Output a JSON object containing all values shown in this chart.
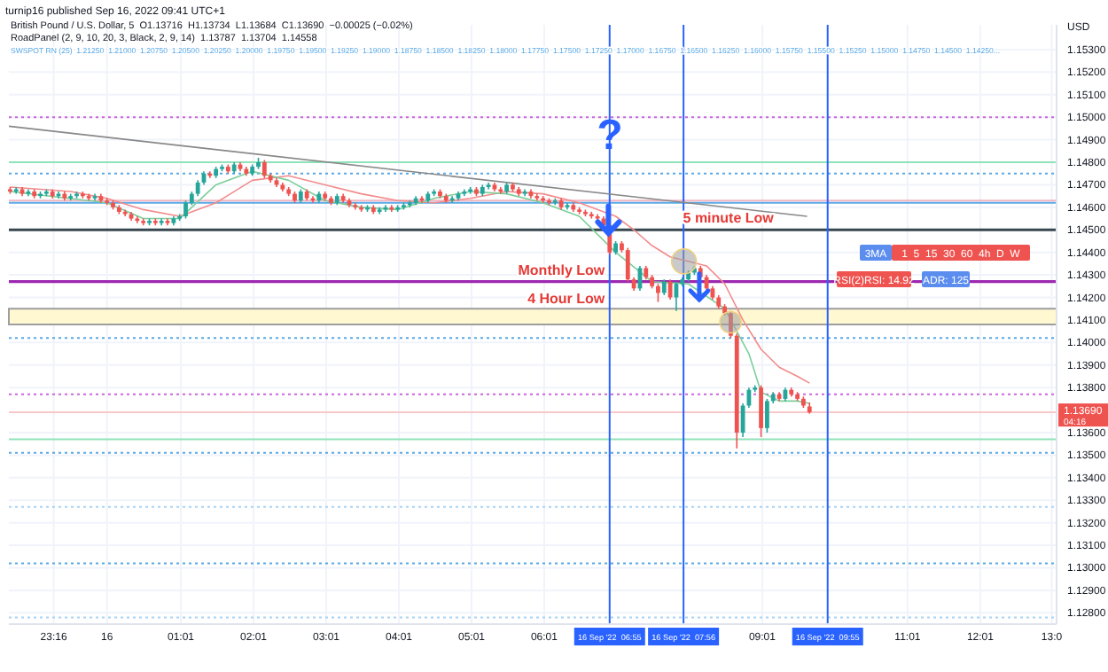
{
  "chart_data": {
    "type": "candlestick",
    "ylabel": "USD",
    "annotations": [
      "turnip16 published Sep 16, 2022 09:41 UTC+1",
      "British Pound / U.S. Dollar, 5  O1.13716  H1.13734  L1.13684  C1.13690  −0.00025 (−0.02%)",
      "RoadPanel (2, 9, 10, 20, 3, Black, 2, 9, 14)  1.13787  1.13704  1.14558",
      "SWSPOT RN (25)  1.21250  1.21000  1.20750  1.20500  1.20250  1.20000  1.19750  1.19500  1.19250  1.19000  1.18750  1.18500  1.18250  1.18000  1.17750  1.17500  1.17250  1.17000  1.16750  1.16500  1.16250  1.16000  1.15750  1.15500  1.15250  1.15000  1.14750  1.14500  1.14250...",
      "?",
      "3MA",
      "1  5  15  30  60  4h  D  W",
      "RSI(2)RSI: 14.92",
      "ADR: 125",
      "1.13690",
      "04:16"
    ],
    "x": [
      "2022-09-15T22:40",
      "2022-09-15T22:45",
      "2022-09-15T22:50",
      "2022-09-15T22:55",
      "2022-09-15T23:00",
      "2022-09-15T23:05",
      "2022-09-15T23:10",
      "2022-09-15T23:15",
      "2022-09-15T23:20",
      "2022-09-15T23:25",
      "2022-09-15T23:30",
      "2022-09-15T23:35",
      "2022-09-15T23:40",
      "2022-09-15T23:45",
      "2022-09-15T23:50",
      "2022-09-15T23:55",
      "2022-09-16T00:00",
      "2022-09-16T00:05",
      "2022-09-16T00:10",
      "2022-09-16T00:15",
      "2022-09-16T00:20",
      "2022-09-16T00:25",
      "2022-09-16T00:30",
      "2022-09-16T00:35",
      "2022-09-16T00:40",
      "2022-09-16T00:45",
      "2022-09-16T00:50",
      "2022-09-16T00:55",
      "2022-09-16T01:00",
      "2022-09-16T01:05",
      "2022-09-16T01:10",
      "2022-09-16T01:15",
      "2022-09-16T01:20",
      "2022-09-16T01:25",
      "2022-09-16T01:30",
      "2022-09-16T01:35",
      "2022-09-16T01:40",
      "2022-09-16T01:45",
      "2022-09-16T01:50",
      "2022-09-16T01:55",
      "2022-09-16T02:00",
      "2022-09-16T02:05",
      "2022-09-16T02:10",
      "2022-09-16T02:15",
      "2022-09-16T02:20",
      "2022-09-16T02:25",
      "2022-09-16T02:30",
      "2022-09-16T02:35",
      "2022-09-16T02:40",
      "2022-09-16T02:45",
      "2022-09-16T02:50",
      "2022-09-16T02:55",
      "2022-09-16T03:00",
      "2022-09-16T03:05",
      "2022-09-16T03:10",
      "2022-09-16T03:15",
      "2022-09-16T03:20",
      "2022-09-16T03:25",
      "2022-09-16T03:30",
      "2022-09-16T03:35",
      "2022-09-16T03:40",
      "2022-09-16T03:45",
      "2022-09-16T03:50",
      "2022-09-16T03:55",
      "2022-09-16T04:00",
      "2022-09-16T04:05",
      "2022-09-16T04:10",
      "2022-09-16T04:15",
      "2022-09-16T04:20",
      "2022-09-16T04:25",
      "2022-09-16T04:30",
      "2022-09-16T04:35",
      "2022-09-16T04:40",
      "2022-09-16T04:45",
      "2022-09-16T04:50",
      "2022-09-16T04:55",
      "2022-09-16T05:00",
      "2022-09-16T05:05",
      "2022-09-16T05:10",
      "2022-09-16T05:15",
      "2022-09-16T05:20",
      "2022-09-16T05:25",
      "2022-09-16T05:30",
      "2022-09-16T05:35",
      "2022-09-16T05:40",
      "2022-09-16T05:45",
      "2022-09-16T05:50",
      "2022-09-16T05:55",
      "2022-09-16T06:00",
      "2022-09-16T06:05",
      "2022-09-16T06:10",
      "2022-09-16T06:15",
      "2022-09-16T06:20",
      "2022-09-16T06:25",
      "2022-09-16T06:30",
      "2022-09-16T06:35",
      "2022-09-16T06:40",
      "2022-09-16T06:45",
      "2022-09-16T06:50",
      "2022-09-16T06:55",
      "2022-09-16T07:00",
      "2022-09-16T07:05",
      "2022-09-16T07:10",
      "2022-09-16T07:15",
      "2022-09-16T07:20",
      "2022-09-16T07:25",
      "2022-09-16T07:30",
      "2022-09-16T07:35",
      "2022-09-16T07:40",
      "2022-09-16T07:45",
      "2022-09-16T07:50",
      "2022-09-16T07:55",
      "2022-09-16T08:00",
      "2022-09-16T08:05",
      "2022-09-16T08:10",
      "2022-09-16T08:15",
      "2022-09-16T08:20",
      "2022-09-16T08:25",
      "2022-09-16T08:30",
      "2022-09-16T08:35",
      "2022-09-16T08:40",
      "2022-09-16T08:45",
      "2022-09-16T08:50",
      "2022-09-16T08:55",
      "2022-09-16T09:00",
      "2022-09-16T09:05",
      "2022-09-16T09:10",
      "2022-09-16T09:15",
      "2022-09-16T09:20",
      "2022-09-16T09:25",
      "2022-09-16T09:30",
      "2022-09-16T09:35",
      "2022-09-16T09:40"
    ],
    "ohlc": [
      [
        1.1468,
        1.1469,
        1.1466,
        1.1467
      ],
      [
        1.1467,
        1.1469,
        1.1466,
        1.1468
      ],
      [
        1.1468,
        1.1469,
        1.1465,
        1.1466
      ],
      [
        1.1466,
        1.1468,
        1.1465,
        1.1467
      ],
      [
        1.1467,
        1.1468,
        1.1464,
        1.1465
      ],
      [
        1.1465,
        1.1467,
        1.1464,
        1.1466
      ],
      [
        1.1466,
        1.1468,
        1.1465,
        1.1467
      ],
      [
        1.1467,
        1.1468,
        1.1464,
        1.1465
      ],
      [
        1.1465,
        1.1467,
        1.1464,
        1.1466
      ],
      [
        1.1466,
        1.1467,
        1.1463,
        1.1464
      ],
      [
        1.1464,
        1.1466,
        1.1463,
        1.1465
      ],
      [
        1.1465,
        1.1467,
        1.1464,
        1.1466
      ],
      [
        1.1466,
        1.1467,
        1.1464,
        1.1465
      ],
      [
        1.1465,
        1.1466,
        1.1463,
        1.1464
      ],
      [
        1.1464,
        1.1466,
        1.1463,
        1.1465
      ],
      [
        1.1465,
        1.1466,
        1.1462,
        1.1463
      ],
      [
        1.1463,
        1.1464,
        1.1461,
        1.1462
      ],
      [
        1.1462,
        1.1463,
        1.1459,
        1.146
      ],
      [
        1.146,
        1.1461,
        1.1457,
        1.1458
      ],
      [
        1.1458,
        1.1459,
        1.1456,
        1.1457
      ],
      [
        1.1457,
        1.1458,
        1.1454,
        1.1455
      ],
      [
        1.1455,
        1.1456,
        1.1453,
        1.1454
      ],
      [
        1.1454,
        1.1455,
        1.1452,
        1.1453
      ],
      [
        1.1453,
        1.1455,
        1.1452,
        1.1454
      ],
      [
        1.1454,
        1.1455,
        1.1452,
        1.1453
      ],
      [
        1.1453,
        1.1455,
        1.1452,
        1.1454
      ],
      [
        1.1454,
        1.1455,
        1.1452,
        1.1453
      ],
      [
        1.1453,
        1.1456,
        1.1452,
        1.1455
      ],
      [
        1.1455,
        1.1457,
        1.1454,
        1.1456
      ],
      [
        1.1456,
        1.1463,
        1.1455,
        1.1462
      ],
      [
        1.1462,
        1.1467,
        1.1461,
        1.1466
      ],
      [
        1.1466,
        1.1472,
        1.1465,
        1.1471
      ],
      [
        1.1471,
        1.1476,
        1.147,
        1.1475
      ],
      [
        1.1475,
        1.1476,
        1.1473,
        1.1474
      ],
      [
        1.1474,
        1.1478,
        1.1473,
        1.1477
      ],
      [
        1.1477,
        1.1479,
        1.1476,
        1.1478
      ],
      [
        1.1478,
        1.1479,
        1.1475,
        1.1476
      ],
      [
        1.1476,
        1.148,
        1.1475,
        1.1479
      ],
      [
        1.1479,
        1.148,
        1.1476,
        1.1477
      ],
      [
        1.1477,
        1.1478,
        1.1474,
        1.1475
      ],
      [
        1.1475,
        1.1479,
        1.1474,
        1.1478
      ],
      [
        1.1478,
        1.1482,
        1.1477,
        1.148
      ],
      [
        1.148,
        1.1481,
        1.1473,
        1.1474
      ],
      [
        1.1474,
        1.1475,
        1.1471,
        1.1472
      ],
      [
        1.1472,
        1.1473,
        1.1469,
        1.147
      ],
      [
        1.147,
        1.1471,
        1.1467,
        1.1468
      ],
      [
        1.1468,
        1.1469,
        1.1465,
        1.1466
      ],
      [
        1.1466,
        1.1467,
        1.1462,
        1.1463
      ],
      [
        1.1463,
        1.1468,
        1.1462,
        1.1467
      ],
      [
        1.1467,
        1.1468,
        1.1463,
        1.1464
      ],
      [
        1.1464,
        1.1465,
        1.1462,
        1.1463
      ],
      [
        1.1463,
        1.1467,
        1.1462,
        1.1466
      ],
      [
        1.1466,
        1.1467,
        1.1463,
        1.1464
      ],
      [
        1.1464,
        1.1465,
        1.1461,
        1.1462
      ],
      [
        1.1462,
        1.1466,
        1.1461,
        1.1465
      ],
      [
        1.1465,
        1.1466,
        1.1462,
        1.1463
      ],
      [
        1.1463,
        1.1464,
        1.146,
        1.1461
      ],
      [
        1.1461,
        1.1462,
        1.1459,
        1.146
      ],
      [
        1.146,
        1.1461,
        1.1458,
        1.1459
      ],
      [
        1.1459,
        1.1461,
        1.1458,
        1.146
      ],
      [
        1.146,
        1.1461,
        1.1457,
        1.1458
      ],
      [
        1.1458,
        1.146,
        1.1457,
        1.1459
      ],
      [
        1.1459,
        1.1461,
        1.1458,
        1.146
      ],
      [
        1.146,
        1.1461,
        1.1458,
        1.1459
      ],
      [
        1.1459,
        1.1461,
        1.1458,
        1.146
      ],
      [
        1.146,
        1.1462,
        1.1459,
        1.1461
      ],
      [
        1.1461,
        1.1463,
        1.146,
        1.1462
      ],
      [
        1.1462,
        1.1465,
        1.1461,
        1.1464
      ],
      [
        1.1464,
        1.1465,
        1.1462,
        1.1463
      ],
      [
        1.1463,
        1.1467,
        1.1462,
        1.1466
      ],
      [
        1.1466,
        1.1468,
        1.1465,
        1.1467
      ],
      [
        1.1467,
        1.1468,
        1.1464,
        1.1465
      ],
      [
        1.1465,
        1.1466,
        1.1462,
        1.1463
      ],
      [
        1.1463,
        1.1465,
        1.1462,
        1.1464
      ],
      [
        1.1464,
        1.1467,
        1.1463,
        1.1466
      ],
      [
        1.1466,
        1.1468,
        1.1465,
        1.1467
      ],
      [
        1.1467,
        1.1469,
        1.1466,
        1.1468
      ],
      [
        1.1468,
        1.1469,
        1.1465,
        1.1466
      ],
      [
        1.1466,
        1.147,
        1.1465,
        1.1469
      ],
      [
        1.1469,
        1.1471,
        1.1468,
        1.147
      ],
      [
        1.147,
        1.1471,
        1.1467,
        1.1468
      ],
      [
        1.1468,
        1.1469,
        1.1466,
        1.1467
      ],
      [
        1.1467,
        1.1471,
        1.1466,
        1.147
      ],
      [
        1.147,
        1.1471,
        1.1467,
        1.1468
      ],
      [
        1.1468,
        1.1469,
        1.1465,
        1.1466
      ],
      [
        1.1466,
        1.1468,
        1.1465,
        1.1467
      ],
      [
        1.1467,
        1.1468,
        1.1464,
        1.1465
      ],
      [
        1.1465,
        1.1466,
        1.1463,
        1.1464
      ],
      [
        1.1464,
        1.1465,
        1.1462,
        1.1463
      ],
      [
        1.1463,
        1.1464,
        1.1461,
        1.1462
      ],
      [
        1.1462,
        1.1464,
        1.1461,
        1.1463
      ],
      [
        1.1463,
        1.1464,
        1.1459,
        1.146
      ],
      [
        1.146,
        1.1462,
        1.1459,
        1.1461
      ],
      [
        1.1461,
        1.1462,
        1.1458,
        1.1459
      ],
      [
        1.1459,
        1.146,
        1.1457,
        1.1458
      ],
      [
        1.1458,
        1.1459,
        1.1456,
        1.1457
      ],
      [
        1.1457,
        1.1458,
        1.1455,
        1.1456
      ],
      [
        1.1456,
        1.1457,
        1.1454,
        1.1455
      ],
      [
        1.1455,
        1.1456,
        1.1451,
        1.1452
      ],
      [
        1.1452,
        1.1453,
        1.1439,
        1.144
      ],
      [
        1.144,
        1.1445,
        1.1439,
        1.1444
      ],
      [
        1.1444,
        1.1445,
        1.144,
        1.1441
      ],
      [
        1.1441,
        1.1442,
        1.1427,
        1.1428
      ],
      [
        1.1428,
        1.1429,
        1.1423,
        1.1424
      ],
      [
        1.1424,
        1.1434,
        1.1423,
        1.1433
      ],
      [
        1.1433,
        1.1434,
        1.1428,
        1.1429
      ],
      [
        1.1429,
        1.143,
        1.1424,
        1.1425
      ],
      [
        1.1425,
        1.1426,
        1.1418,
        1.1422
      ],
      [
        1.1422,
        1.1428,
        1.1421,
        1.1427
      ],
      [
        1.1427,
        1.1428,
        1.1419,
        1.142
      ],
      [
        1.142,
        1.1427,
        1.1414,
        1.1426
      ],
      [
        1.1426,
        1.1429,
        1.1425,
        1.1428
      ],
      [
        1.1428,
        1.1432,
        1.1427,
        1.1431
      ],
      [
        1.1431,
        1.1434,
        1.143,
        1.1433
      ],
      [
        1.1433,
        1.1434,
        1.1428,
        1.1429
      ],
      [
        1.1429,
        1.143,
        1.1423,
        1.1424
      ],
      [
        1.1424,
        1.1425,
        1.1419,
        1.142
      ],
      [
        1.142,
        1.1421,
        1.1415,
        1.1416
      ],
      [
        1.1416,
        1.1417,
        1.1412,
        1.1413
      ],
      [
        1.1413,
        1.1414,
        1.1402,
        1.1403
      ],
      [
        1.1403,
        1.1404,
        1.1353,
        1.136
      ],
      [
        1.136,
        1.1373,
        1.1358,
        1.1372
      ],
      [
        1.1372,
        1.138,
        1.1371,
        1.1379
      ],
      [
        1.1379,
        1.1381,
        1.1378,
        1.138
      ],
      [
        1.138,
        1.1381,
        1.1358,
        1.1362
      ],
      [
        1.1362,
        1.1375,
        1.136,
        1.1374
      ],
      [
        1.1374,
        1.1378,
        1.1373,
        1.1377
      ],
      [
        1.1377,
        1.1378,
        1.1374,
        1.1375
      ],
      [
        1.1375,
        1.138,
        1.1374,
        1.1379
      ],
      [
        1.1379,
        1.138,
        1.1376,
        1.1377
      ],
      [
        1.1377,
        1.1378,
        1.1374,
        1.1375
      ],
      [
        1.1375,
        1.1376,
        1.1371,
        1.1372
      ],
      [
        1.13716,
        1.13734,
        1.13684,
        1.1369
      ]
    ],
    "series": [
      {
        "type": "line",
        "color": "#f28b8b",
        "x": [
          "2022-09-15T22:40",
          "2022-09-15T23:30",
          "2022-09-16T00:00",
          "2022-09-16T00:30",
          "2022-09-16T01:00",
          "2022-09-16T01:30",
          "2022-09-16T02:00",
          "2022-09-16T02:30",
          "2022-09-16T03:00",
          "2022-09-16T03:30",
          "2022-09-16T04:00",
          "2022-09-16T04:30",
          "2022-09-16T05:00",
          "2022-09-16T05:30",
          "2022-09-16T06:00",
          "2022-09-16T06:30",
          "2022-09-16T07:00",
          "2022-09-16T07:15",
          "2022-09-16T07:30",
          "2022-09-16T07:45",
          "2022-09-16T08:00",
          "2022-09-16T08:15",
          "2022-09-16T08:30",
          "2022-09-16T08:45",
          "2022-09-16T09:00",
          "2022-09-16T09:15",
          "2022-09-16T09:30",
          "2022-09-16T09:40"
        ],
        "values": [
          1.1469,
          1.1467,
          1.1464,
          1.1459,
          1.1456,
          1.1462,
          1.1472,
          1.1474,
          1.147,
          1.1466,
          1.1463,
          1.1462,
          1.1464,
          1.1467,
          1.1466,
          1.1462,
          1.1456,
          1.145,
          1.1443,
          1.1438,
          1.1436,
          1.1434,
          1.1426,
          1.141,
          1.1397,
          1.1389,
          1.1385,
          1.1382
        ]
      },
      {
        "type": "line",
        "color": "#7ccf9a",
        "x": [
          "2022-09-15T22:40",
          "2022-09-16T00:00",
          "2022-09-16T00:30",
          "2022-09-16T01:00",
          "2022-09-16T01:30",
          "2022-09-16T02:00",
          "2022-09-16T02:30",
          "2022-09-16T03:00",
          "2022-09-16T03:30",
          "2022-09-16T04:00",
          "2022-09-16T04:30",
          "2022-09-16T05:00",
          "2022-09-16T05:30",
          "2022-09-16T06:00",
          "2022-09-16T06:30",
          "2022-09-16T07:00",
          "2022-09-16T07:30",
          "2022-09-16T08:00",
          "2022-09-16T08:30",
          "2022-09-16T08:50",
          "2022-09-16T09:00",
          "2022-09-16T09:15",
          "2022-09-16T09:30",
          "2022-09-16T09:40"
        ],
        "values": [
          1.1467,
          1.1462,
          1.1455,
          1.1455,
          1.147,
          1.1476,
          1.1472,
          1.1463,
          1.146,
          1.1459,
          1.1464,
          1.1467,
          1.1466,
          1.1462,
          1.1456,
          1.144,
          1.1427,
          1.1426,
          1.1415,
          1.1395,
          1.1378,
          1.1374,
          1.1374,
          1.1373
        ]
      },
      {
        "type": "line",
        "color": "#888888",
        "x": [
          "2022-09-15T22:39",
          "2022-09-16T09:38"
        ],
        "values": [
          1.1496,
          1.1456
        ]
      }
    ],
    "xlim": [
      "2022-09-15T22:39",
      "2022-09-16T13:04"
    ],
    "ylim": [
      1.1275,
      1.1541
    ],
    "xticks": [
      {
        "value": "2022-09-15T23:16",
        "label": "23:16"
      },
      {
        "value": "2022-09-16T00:00",
        "label": "16"
      },
      {
        "value": "2022-09-16T01:01",
        "label": "01:01"
      },
      {
        "value": "2022-09-16T02:01",
        "label": "02:01"
      },
      {
        "value": "2022-09-16T03:01",
        "label": "03:01"
      },
      {
        "value": "2022-09-16T04:01",
        "label": "04:01"
      },
      {
        "value": "2022-09-16T05:01",
        "label": "05:01"
      },
      {
        "value": "2022-09-16T06:01",
        "label": "06:01"
      },
      {
        "value": "2022-09-16T09:01",
        "label": "09:01"
      },
      {
        "value": "2022-09-16T11:01",
        "label": "11:01"
      },
      {
        "value": "2022-09-16T12:01",
        "label": "12:01"
      },
      {
        "value": "2022-09-16T13:00",
        "label": "13:0"
      }
    ],
    "yticks": [
      {
        "value": 1.153,
        "label": "1.15300"
      },
      {
        "value": 1.152,
        "label": "1.15200"
      },
      {
        "value": 1.151,
        "label": "1.15100"
      },
      {
        "value": 1.15,
        "label": "1.15000"
      },
      {
        "value": 1.149,
        "label": "1.14900"
      },
      {
        "value": 1.148,
        "label": "1.14800"
      },
      {
        "value": 1.147,
        "label": "1.14700"
      },
      {
        "value": 1.146,
        "label": "1.14600"
      },
      {
        "value": 1.145,
        "label": "1.14500"
      },
      {
        "value": 1.144,
        "label": "1.14400"
      },
      {
        "value": 1.143,
        "label": "1.14300"
      },
      {
        "value": 1.142,
        "label": "1.14200"
      },
      {
        "value": 1.141,
        "label": "1.14100"
      },
      {
        "value": 1.14,
        "label": "1.14000"
      },
      {
        "value": 1.139,
        "label": "1.13900"
      },
      {
        "value": 1.138,
        "label": "1.13800"
      },
      {
        "value": 1.136,
        "label": "1.13600"
      },
      {
        "value": 1.135,
        "label": "1.13500"
      },
      {
        "value": 1.134,
        "label": "1.13400"
      },
      {
        "value": 1.133,
        "label": "1.13300"
      },
      {
        "value": 1.132,
        "label": "1.13200"
      },
      {
        "value": 1.131,
        "label": "1.13100"
      },
      {
        "value": 1.13,
        "label": "1.13000"
      },
      {
        "value": 1.129,
        "label": "1.12900"
      },
      {
        "value": 1.128,
        "label": "1.12800"
      }
    ],
    "grid": true,
    "ref_lines": [
      {
        "axis": "y",
        "value": 1.15,
        "color": "#cc66dd",
        "line_style": "dotted"
      },
      {
        "axis": "y",
        "value": 1.148,
        "color": "#8fe3b8",
        "line_style": "solid"
      },
      {
        "axis": "y",
        "value": 1.1475,
        "color": "#5aa9e6",
        "line_style": "dotted"
      },
      {
        "axis": "y",
        "value": 1.1463,
        "color": "#f4b6c2",
        "line_style": "solid"
      },
      {
        "axis": "y",
        "value": 1.1462,
        "color": "#5aa9e6",
        "line_style": "solid"
      },
      {
        "axis": "y",
        "value": 1.145,
        "color": "#37474f",
        "line_style": "solid",
        "label": "5 minute Low"
      },
      {
        "axis": "y",
        "value": 1.1427,
        "color": "#9c27b0",
        "line_style": "solid",
        "label": "Monthly Low"
      },
      {
        "axis": "y",
        "value": 1.1402,
        "color": "#5aa9e6",
        "line_style": "dotted"
      },
      {
        "axis": "y",
        "value": 1.1377,
        "color": "#cc66dd",
        "line_style": "dotted"
      },
      {
        "axis": "y",
        "value": 1.1369,
        "color": "#f8c8c8",
        "line_style": "solid"
      },
      {
        "axis": "y",
        "value": 1.1357,
        "color": "#8fe3b8",
        "line_style": "solid"
      },
      {
        "axis": "y",
        "value": 1.1351,
        "color": "#5aa9e6",
        "line_style": "dotted"
      },
      {
        "axis": "y",
        "value": 1.1327,
        "color": "#a8d4f5",
        "line_style": "dotted"
      },
      {
        "axis": "y",
        "value": 1.1302,
        "color": "#5aa9e6",
        "line_style": "dotted"
      },
      {
        "axis": "y",
        "value": 1.1278,
        "color": "#a8d4f5",
        "line_style": "dotted"
      },
      {
        "axis": "x",
        "value": "2022-09-16T06:55",
        "color": "#2962ff",
        "line_style": "solid",
        "label": "16 Sep '22  06:55"
      },
      {
        "axis": "x",
        "value": "2022-09-16T07:56",
        "color": "#2962ff",
        "line_style": "solid",
        "label": "16 Sep '22  07:56"
      },
      {
        "axis": "x",
        "value": "2022-09-16T09:55",
        "color": "#2962ff",
        "line_style": "solid",
        "label": "16 Sep '22  09:55"
      }
    ],
    "bands": [
      {
        "axis": "y",
        "from": 1.1408,
        "to": 1.1415,
        "color": "#fff8d0",
        "label": "4 Hour Low"
      }
    ]
  }
}
